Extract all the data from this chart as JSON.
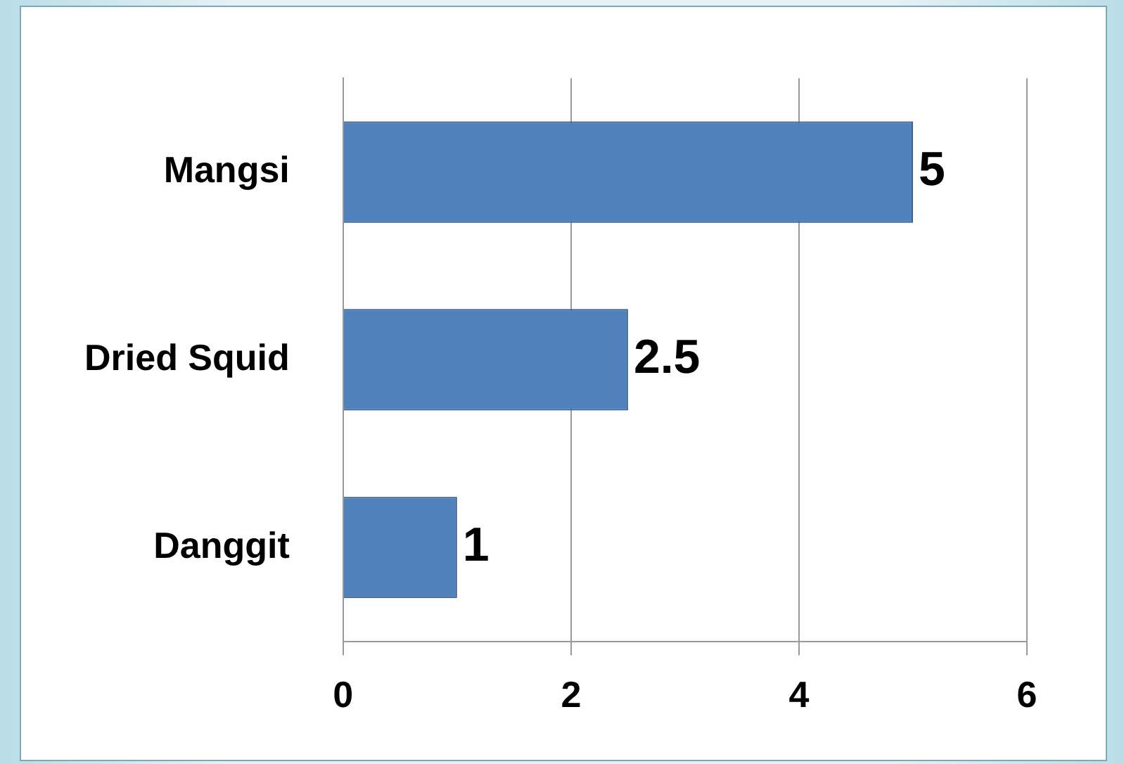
{
  "chart_data": {
    "type": "bar",
    "orientation": "horizontal",
    "categories": [
      "Mangsi",
      "Dried Squid",
      "Danggit"
    ],
    "values": [
      5,
      2.5,
      1
    ],
    "color": "#4f81bd",
    "xlim": [
      0,
      6
    ],
    "xticks": [
      0,
      2,
      4,
      6
    ],
    "grid": "x",
    "data_labels": true,
    "legend": false
  }
}
